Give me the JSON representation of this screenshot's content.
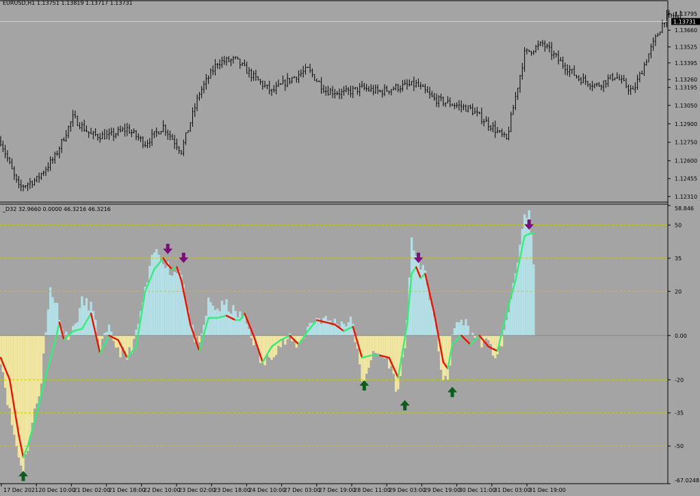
{
  "colors": {
    "background": "#a4a4a4",
    "frame": "#000000",
    "candles": "#000000",
    "price_line": "#d4d4d4",
    "price_tag_bg": "#000000",
    "price_tag_text": "#ffffff",
    "level_lines": "#c8c800",
    "hist_positive": "#b3e0e6",
    "hist_negative": "#f0e6a0",
    "line_up": "#33ee77",
    "line_down": "#ee1100",
    "arrow_up": "#0b5d1e",
    "arrow_down": "#7a0f78"
  },
  "chart_data": [
    {
      "type": "candlestick",
      "header": "EURUSD,H1  1.13751 1.13819 1.13717 1.13731",
      "symbol": "EURUSD",
      "timeframe": "H1",
      "ohlc_last": {
        "open": 1.13751,
        "high": 1.13819,
        "low": 1.13717,
        "close": 1.13731
      },
      "current_price": "1.13731",
      "ylim": [
        1.1227,
        1.1385
      ],
      "y_ticks": [
        "1.13795",
        "1.13660",
        "1.13525",
        "1.13395",
        "1.13260",
        "1.13195",
        "1.13050",
        "1.12900",
        "1.12750",
        "1.12600",
        "1.12455",
        "1.12310"
      ],
      "x_ticks": [
        "17 Dec 2021",
        "20 Dec 10:00",
        "21 Dec 02:00",
        "21 Dec 18:00",
        "22 Dec 10:00",
        "23 Dec 02:00",
        "23 Dec 18:00",
        "24 Dec 10:00",
        "27 Dec 03:00",
        "27 Dec 19:00",
        "28 Dec 11:00",
        "29 Dec 03:00",
        "29 Dec 19:00",
        "30 Dec 11:00",
        "31 Dec 03:00",
        "31 Dec 19:00"
      ],
      "close_keypoints": [
        [
          0,
          1.1276
        ],
        [
          8,
          1.1238
        ],
        [
          16,
          1.1245
        ],
        [
          24,
          1.1263
        ],
        [
          32,
          1.1295
        ],
        [
          40,
          1.1281
        ],
        [
          48,
          1.128
        ],
        [
          56,
          1.1286
        ],
        [
          64,
          1.1274
        ],
        [
          72,
          1.1288
        ],
        [
          80,
          1.1268
        ],
        [
          88,
          1.1315
        ],
        [
          96,
          1.134
        ],
        [
          104,
          1.1342
        ],
        [
          112,
          1.1328
        ],
        [
          120,
          1.1316
        ],
        [
          128,
          1.1326
        ],
        [
          136,
          1.1334
        ],
        [
          144,
          1.1317
        ],
        [
          152,
          1.1315
        ],
        [
          160,
          1.1319
        ],
        [
          168,
          1.1316
        ],
        [
          176,
          1.132
        ],
        [
          184,
          1.1322
        ],
        [
          192,
          1.131
        ],
        [
          200,
          1.1306
        ],
        [
          208,
          1.1302
        ],
        [
          216,
          1.129
        ],
        [
          224,
          1.1277
        ],
        [
          232,
          1.1347
        ],
        [
          240,
          1.1355
        ],
        [
          248,
          1.134
        ],
        [
          256,
          1.1327
        ],
        [
          264,
          1.1321
        ],
        [
          272,
          1.1329
        ],
        [
          280,
          1.1316
        ],
        [
          288,
          1.1351
        ],
        [
          294,
          1.1375
        ],
        [
          298,
          1.1378
        ],
        [
          301,
          1.1373
        ]
      ]
    },
    {
      "type": "line+histogram",
      "header": "_D32 32.9660 0.0000 46.3216 46.3216",
      "name": "_D32",
      "header_values": [
        32.966,
        0.0,
        46.3216,
        46.3216
      ],
      "ylim": [
        -67.0248,
        58.846
      ],
      "y_ticks": [
        "58.846",
        "50",
        "35",
        "20",
        "0.00",
        "-20",
        "-35",
        "-50",
        "-67.0248"
      ],
      "levels": [
        50,
        35,
        20,
        -20,
        -35,
        -50
      ],
      "line_keypoints": [
        [
          0,
          -10
        ],
        [
          4,
          -20
        ],
        [
          8,
          -45
        ],
        [
          10,
          -55
        ],
        [
          12,
          -50
        ],
        [
          16,
          -35
        ],
        [
          20,
          -18
        ],
        [
          24,
          -3
        ],
        [
          26,
          6
        ],
        [
          28,
          -2
        ],
        [
          32,
          2
        ],
        [
          36,
          3
        ],
        [
          40,
          10
        ],
        [
          44,
          -8
        ],
        [
          48,
          0
        ],
        [
          52,
          -2
        ],
        [
          56,
          -10
        ],
        [
          60,
          -5
        ],
        [
          64,
          20
        ],
        [
          68,
          30
        ],
        [
          72,
          35
        ],
        [
          74,
          32
        ],
        [
          76,
          30
        ],
        [
          78,
          31
        ],
        [
          80,
          25
        ],
        [
          84,
          5
        ],
        [
          88,
          -7
        ],
        [
          92,
          8
        ],
        [
          96,
          8
        ],
        [
          100,
          9
        ],
        [
          104,
          7
        ],
        [
          106,
          7
        ],
        [
          108,
          10
        ],
        [
          112,
          0
        ],
        [
          116,
          -12
        ],
        [
          120,
          -5
        ],
        [
          124,
          -2
        ],
        [
          128,
          0
        ],
        [
          132,
          -4
        ],
        [
          136,
          2
        ],
        [
          140,
          7
        ],
        [
          144,
          6
        ],
        [
          148,
          5
        ],
        [
          152,
          2
        ],
        [
          156,
          4
        ],
        [
          160,
          -10
        ],
        [
          164,
          -9
        ],
        [
          168,
          -9
        ],
        [
          172,
          -10
        ],
        [
          176,
          -19
        ],
        [
          180,
          5
        ],
        [
          182,
          28
        ],
        [
          184,
          31
        ],
        [
          186,
          26
        ],
        [
          188,
          28
        ],
        [
          192,
          10
        ],
        [
          196,
          -12
        ],
        [
          198,
          -15
        ],
        [
          200,
          -4
        ],
        [
          204,
          0
        ],
        [
          208,
          -4
        ],
        [
          212,
          0
        ],
        [
          216,
          -5
        ],
        [
          220,
          -7
        ],
        [
          224,
          10
        ],
        [
          228,
          25
        ],
        [
          232,
          45
        ],
        [
          234,
          46
        ],
        [
          236,
          46.3216
        ]
      ],
      "hist_keypoints": [
        [
          0,
          -10
        ],
        [
          4,
          -35
        ],
        [
          8,
          -55
        ],
        [
          10,
          -60
        ],
        [
          14,
          -40
        ],
        [
          18,
          -20
        ],
        [
          22,
          22
        ],
        [
          26,
          10
        ],
        [
          28,
          0
        ],
        [
          32,
          2
        ],
        [
          36,
          15
        ],
        [
          40,
          14
        ],
        [
          44,
          -5
        ],
        [
          48,
          2
        ],
        [
          52,
          -6
        ],
        [
          56,
          -10
        ],
        [
          60,
          0
        ],
        [
          64,
          20
        ],
        [
          68,
          38
        ],
        [
          72,
          35
        ],
        [
          76,
          28
        ],
        [
          80,
          30
        ],
        [
          84,
          5
        ],
        [
          88,
          -6
        ],
        [
          92,
          15
        ],
        [
          96,
          12
        ],
        [
          100,
          14
        ],
        [
          104,
          10
        ],
        [
          108,
          8
        ],
        [
          112,
          -2
        ],
        [
          116,
          -14
        ],
        [
          120,
          -8
        ],
        [
          124,
          -4
        ],
        [
          128,
          -2
        ],
        [
          132,
          -4
        ],
        [
          136,
          4
        ],
        [
          140,
          8
        ],
        [
          144,
          7
        ],
        [
          148,
          6
        ],
        [
          152,
          6
        ],
        [
          156,
          6
        ],
        [
          160,
          -22
        ],
        [
          164,
          -10
        ],
        [
          168,
          -8
        ],
        [
          172,
          -12
        ],
        [
          176,
          -26
        ],
        [
          180,
          5
        ],
        [
          182,
          42
        ],
        [
          184,
          38
        ],
        [
          186,
          30
        ],
        [
          188,
          28
        ],
        [
          192,
          8
        ],
        [
          196,
          -20
        ],
        [
          198,
          -22
        ],
        [
          200,
          0
        ],
        [
          204,
          8
        ],
        [
          208,
          2
        ],
        [
          212,
          -2
        ],
        [
          216,
          -4
        ],
        [
          220,
          -10
        ],
        [
          224,
          5
        ],
        [
          228,
          30
        ],
        [
          232,
          52
        ],
        [
          234,
          54
        ],
        [
          236,
          33
        ]
      ],
      "markers": [
        {
          "type": "buy",
          "bar": 10,
          "value": -55
        },
        {
          "type": "sell",
          "bar": 74,
          "value": 35
        },
        {
          "type": "sell",
          "bar": 81,
          "value": 31
        },
        {
          "type": "buy",
          "bar": 161,
          "value": -14
        },
        {
          "type": "buy",
          "bar": 179,
          "value": -23
        },
        {
          "type": "sell",
          "bar": 185,
          "value": 31
        },
        {
          "type": "buy",
          "bar": 200,
          "value": -17
        },
        {
          "type": "sell",
          "bar": 234,
          "value": 46
        }
      ]
    }
  ]
}
